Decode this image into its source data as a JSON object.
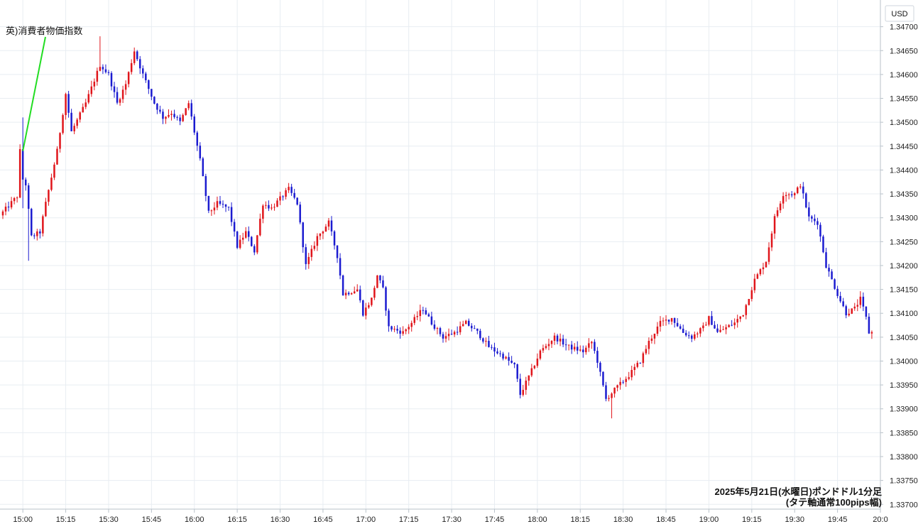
{
  "chart_data": {
    "type": "candlestick",
    "currency_unit": "USD",
    "annotation": "英)消費者物価指数",
    "caption_line1": "2025年5月21日(水曜日)ポンドドル1分足",
    "caption_line2": "(タテ軸通常100pips幅)",
    "x_ticks": [
      "15:00",
      "15:15",
      "15:30",
      "15:45",
      "16:00",
      "16:15",
      "16:30",
      "16:45",
      "17:00",
      "17:15",
      "17:30",
      "17:45",
      "18:00",
      "18:15",
      "18:30",
      "18:45",
      "19:00",
      "19:15",
      "19:30",
      "19:45",
      "20:0"
    ],
    "y_ticks": [
      "1.34700",
      "1.34650",
      "1.34600",
      "1.34550",
      "1.34500",
      "1.34450",
      "1.34400",
      "1.34350",
      "1.34300",
      "1.34250",
      "1.34200",
      "1.34150",
      "1.34100",
      "1.34050",
      "1.34000",
      "1.33950",
      "1.33900",
      "1.33850",
      "1.33800",
      "1.33750",
      "1.33700"
    ],
    "ylim": [
      1.3369,
      1.3475
    ],
    "xlim": [
      "14:53",
      "20:00"
    ],
    "grid": true,
    "colors": {
      "up": "#e0151b",
      "down": "#1b1bd0",
      "annotation_line": "#22dd22",
      "grid": "#e8edf2"
    },
    "price_keypoints": [
      {
        "time": "14:53",
        "price": 1.34305
      },
      {
        "time": "14:59",
        "price": 1.34345
      },
      {
        "time": "15:00",
        "price": 1.3444
      },
      {
        "time": "15:02",
        "price": 1.3437
      },
      {
        "time": "15:04",
        "price": 1.3426
      },
      {
        "time": "15:07",
        "price": 1.3427
      },
      {
        "time": "15:09",
        "price": 1.3433
      },
      {
        "time": "15:13",
        "price": 1.3444
      },
      {
        "time": "15:16",
        "price": 1.3456
      },
      {
        "time": "15:18",
        "price": 1.3448
      },
      {
        "time": "15:23",
        "price": 1.3454
      },
      {
        "time": "15:28",
        "price": 1.3462
      },
      {
        "time": "15:31",
        "price": 1.346
      },
      {
        "time": "15:34",
        "price": 1.3454
      },
      {
        "time": "15:37",
        "price": 1.3458
      },
      {
        "time": "15:40",
        "price": 1.3465
      },
      {
        "time": "15:43",
        "price": 1.346
      },
      {
        "time": "15:47",
        "price": 1.3454
      },
      {
        "time": "15:50",
        "price": 1.3451
      },
      {
        "time": "15:53",
        "price": 1.3452
      },
      {
        "time": "15:56",
        "price": 1.345
      },
      {
        "time": "15:59",
        "price": 1.3454
      },
      {
        "time": "16:03",
        "price": 1.3442
      },
      {
        "time": "16:06",
        "price": 1.3431
      },
      {
        "time": "16:09",
        "price": 1.3433
      },
      {
        "time": "16:13",
        "price": 1.3432
      },
      {
        "time": "16:16",
        "price": 1.3424
      },
      {
        "time": "16:19",
        "price": 1.3427
      },
      {
        "time": "16:22",
        "price": 1.3423
      },
      {
        "time": "16:25",
        "price": 1.3433
      },
      {
        "time": "16:28",
        "price": 1.3432
      },
      {
        "time": "16:31",
        "price": 1.3434
      },
      {
        "time": "16:34",
        "price": 1.3436
      },
      {
        "time": "16:37",
        "price": 1.3433
      },
      {
        "time": "16:40",
        "price": 1.342
      },
      {
        "time": "16:44",
        "price": 1.3426
      },
      {
        "time": "16:48",
        "price": 1.3429
      },
      {
        "time": "16:51",
        "price": 1.3422
      },
      {
        "time": "16:53",
        "price": 1.3414
      },
      {
        "time": "16:58",
        "price": 1.3415
      },
      {
        "time": "17:00",
        "price": 1.341
      },
      {
        "time": "17:03",
        "price": 1.3413
      },
      {
        "time": "17:05",
        "price": 1.3418
      },
      {
        "time": "17:07",
        "price": 1.3415
      },
      {
        "time": "17:09",
        "price": 1.3407
      },
      {
        "time": "17:14",
        "price": 1.3406
      },
      {
        "time": "17:17",
        "price": 1.3408
      },
      {
        "time": "17:21",
        "price": 1.3411
      },
      {
        "time": "17:24",
        "price": 1.3408
      },
      {
        "time": "17:28",
        "price": 1.3405
      },
      {
        "time": "17:32",
        "price": 1.3406
      },
      {
        "time": "17:36",
        "price": 1.3408
      },
      {
        "time": "17:40",
        "price": 1.3406
      },
      {
        "time": "17:44",
        "price": 1.3403
      },
      {
        "time": "17:49",
        "price": 1.3401
      },
      {
        "time": "17:53",
        "price": 1.3399
      },
      {
        "time": "17:55",
        "price": 1.3393
      },
      {
        "time": "17:59",
        "price": 1.3398
      },
      {
        "time": "18:02",
        "price": 1.3402
      },
      {
        "time": "18:07",
        "price": 1.3405
      },
      {
        "time": "18:12",
        "price": 1.3403
      },
      {
        "time": "18:17",
        "price": 1.3402
      },
      {
        "time": "18:20",
        "price": 1.3404
      },
      {
        "time": "18:22",
        "price": 1.34
      },
      {
        "time": "18:25",
        "price": 1.3392
      },
      {
        "time": "18:28",
        "price": 1.3394
      },
      {
        "time": "18:33",
        "price": 1.3397
      },
      {
        "time": "18:37",
        "price": 1.34
      },
      {
        "time": "18:40",
        "price": 1.3404
      },
      {
        "time": "18:44",
        "price": 1.3408
      },
      {
        "time": "18:48",
        "price": 1.3409
      },
      {
        "time": "18:52",
        "price": 1.3406
      },
      {
        "time": "18:55",
        "price": 1.3405
      },
      {
        "time": "18:59",
        "price": 1.3407
      },
      {
        "time": "19:01",
        "price": 1.3409
      },
      {
        "time": "19:04",
        "price": 1.3406
      },
      {
        "time": "19:07",
        "price": 1.3407
      },
      {
        "time": "19:10",
        "price": 1.3408
      },
      {
        "time": "19:13",
        "price": 1.341
      },
      {
        "time": "19:17",
        "price": 1.3417
      },
      {
        "time": "19:21",
        "price": 1.3421
      },
      {
        "time": "19:24",
        "price": 1.343
      },
      {
        "time": "19:27",
        "price": 1.3435
      },
      {
        "time": "19:31",
        "price": 1.3435
      },
      {
        "time": "19:33",
        "price": 1.3437
      },
      {
        "time": "19:36",
        "price": 1.343
      },
      {
        "time": "19:39",
        "price": 1.3429
      },
      {
        "time": "19:42",
        "price": 1.342
      },
      {
        "time": "19:46",
        "price": 1.3414
      },
      {
        "time": "19:49",
        "price": 1.341
      },
      {
        "time": "19:52",
        "price": 1.3411
      },
      {
        "time": "19:54",
        "price": 1.3413
      },
      {
        "time": "19:56",
        "price": 1.3409
      },
      {
        "time": "19:57",
        "price": 1.3406
      }
    ]
  }
}
